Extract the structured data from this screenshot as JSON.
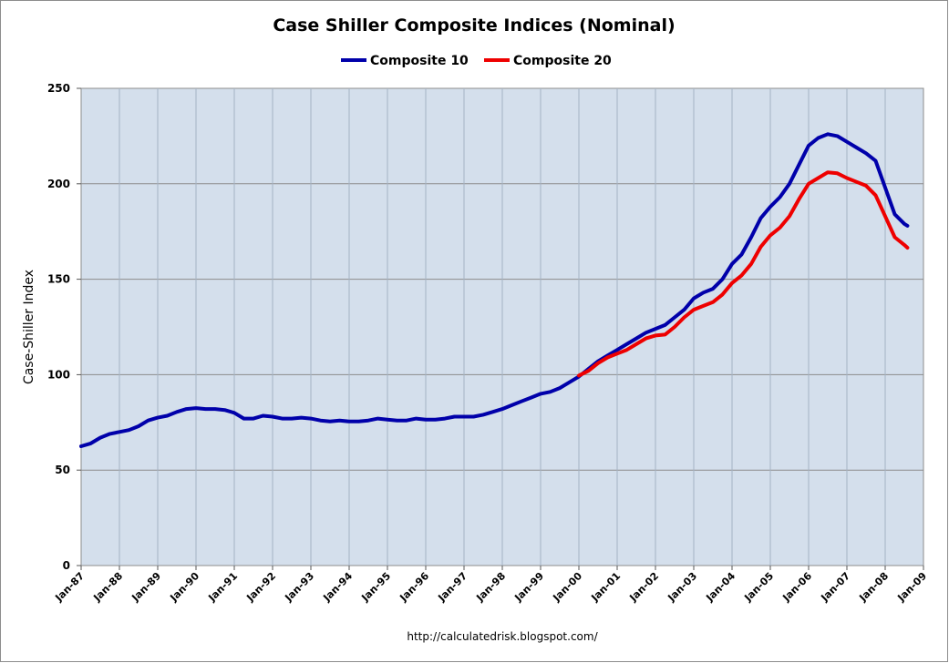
{
  "chart_data": {
    "type": "line",
    "title": "Case Shiller Composite Indices (Nominal)",
    "xlabel": "",
    "ylabel": "Case-Shiller Index",
    "ylim": [
      0,
      250
    ],
    "yticks": [
      0,
      50,
      100,
      150,
      200,
      250
    ],
    "xlim": [
      1987,
      2009
    ],
    "xticks": [
      "Jan-87",
      "Jan-88",
      "Jan-89",
      "Jan-90",
      "Jan-91",
      "Jan-92",
      "Jan-93",
      "Jan-94",
      "Jan-95",
      "Jan-96",
      "Jan-97",
      "Jan-98",
      "Jan-99",
      "Jan-00",
      "Jan-01",
      "Jan-02",
      "Jan-03",
      "Jan-04",
      "Jan-05",
      "Jan-06",
      "Jan-07",
      "Jan-08",
      "Jan-09"
    ],
    "grid": true,
    "legend": "top-center",
    "source_note": "http://calculatedrisk.blogspot.com/",
    "series": [
      {
        "name": "Composite 10",
        "color": "#0000aa",
        "points": [
          [
            1987.0,
            62.5
          ],
          [
            1987.25,
            64
          ],
          [
            1987.5,
            67
          ],
          [
            1987.75,
            69
          ],
          [
            1988.0,
            70
          ],
          [
            1988.25,
            71
          ],
          [
            1988.5,
            73
          ],
          [
            1988.75,
            76
          ],
          [
            1989.0,
            77.5
          ],
          [
            1989.25,
            78.5
          ],
          [
            1989.5,
            80.5
          ],
          [
            1989.75,
            82
          ],
          [
            1990.0,
            82.5
          ],
          [
            1990.25,
            82
          ],
          [
            1990.5,
            82
          ],
          [
            1990.75,
            81.5
          ],
          [
            1991.0,
            80
          ],
          [
            1991.25,
            77
          ],
          [
            1991.5,
            77
          ],
          [
            1991.75,
            78.5
          ],
          [
            1992.0,
            78
          ],
          [
            1992.25,
            77
          ],
          [
            1992.5,
            77
          ],
          [
            1992.75,
            77.5
          ],
          [
            1993.0,
            77
          ],
          [
            1993.25,
            76
          ],
          [
            1993.5,
            75.5
          ],
          [
            1993.75,
            76
          ],
          [
            1994.0,
            75.5
          ],
          [
            1994.25,
            75.5
          ],
          [
            1994.5,
            76
          ],
          [
            1994.75,
            77
          ],
          [
            1995.0,
            76.5
          ],
          [
            1995.25,
            76
          ],
          [
            1995.5,
            76
          ],
          [
            1995.75,
            77
          ],
          [
            1996.0,
            76.5
          ],
          [
            1996.25,
            76.5
          ],
          [
            1996.5,
            77
          ],
          [
            1996.75,
            78
          ],
          [
            1997.0,
            78
          ],
          [
            1997.25,
            78
          ],
          [
            1997.5,
            79
          ],
          [
            1997.75,
            80.5
          ],
          [
            1998.0,
            82
          ],
          [
            1998.25,
            84
          ],
          [
            1998.5,
            86
          ],
          [
            1998.75,
            88
          ],
          [
            1999.0,
            90
          ],
          [
            1999.25,
            91
          ],
          [
            1999.5,
            93
          ],
          [
            1999.75,
            96
          ],
          [
            2000.0,
            99
          ],
          [
            2000.25,
            103
          ],
          [
            2000.5,
            107
          ],
          [
            2000.75,
            110
          ],
          [
            2001.0,
            113
          ],
          [
            2001.25,
            116
          ],
          [
            2001.5,
            119
          ],
          [
            2001.75,
            122
          ],
          [
            2002.0,
            124
          ],
          [
            2002.25,
            126
          ],
          [
            2002.5,
            130
          ],
          [
            2002.75,
            134
          ],
          [
            2003.0,
            140
          ],
          [
            2003.25,
            143
          ],
          [
            2003.5,
            145
          ],
          [
            2003.75,
            150
          ],
          [
            2004.0,
            158
          ],
          [
            2004.25,
            163
          ],
          [
            2004.5,
            172
          ],
          [
            2004.75,
            182
          ],
          [
            2005.0,
            188
          ],
          [
            2005.25,
            193
          ],
          [
            2005.5,
            200
          ],
          [
            2005.75,
            210
          ],
          [
            2006.0,
            220
          ],
          [
            2006.25,
            224
          ],
          [
            2006.5,
            226
          ],
          [
            2006.75,
            225
          ],
          [
            2007.0,
            222
          ],
          [
            2007.25,
            219
          ],
          [
            2007.5,
            216
          ],
          [
            2007.75,
            212
          ],
          [
            2008.0,
            198
          ],
          [
            2008.25,
            184
          ],
          [
            2008.5,
            179
          ],
          [
            2008.58,
            178
          ]
        ]
      },
      {
        "name": "Composite 20",
        "color": "#ee0000",
        "points": [
          [
            2000.0,
            99.5
          ],
          [
            2000.25,
            102
          ],
          [
            2000.5,
            106
          ],
          [
            2000.75,
            109
          ],
          [
            2001.0,
            111
          ],
          [
            2001.25,
            113
          ],
          [
            2001.5,
            116
          ],
          [
            2001.75,
            119
          ],
          [
            2002.0,
            120.5
          ],
          [
            2002.25,
            121
          ],
          [
            2002.5,
            125
          ],
          [
            2002.75,
            130
          ],
          [
            2003.0,
            134
          ],
          [
            2003.25,
            136
          ],
          [
            2003.5,
            138
          ],
          [
            2003.75,
            142
          ],
          [
            2004.0,
            148
          ],
          [
            2004.25,
            152
          ],
          [
            2004.5,
            158
          ],
          [
            2004.75,
            167
          ],
          [
            2005.0,
            173
          ],
          [
            2005.25,
            177
          ],
          [
            2005.5,
            183
          ],
          [
            2005.75,
            192
          ],
          [
            2006.0,
            200
          ],
          [
            2006.25,
            203
          ],
          [
            2006.5,
            206
          ],
          [
            2006.75,
            205.5
          ],
          [
            2007.0,
            203
          ],
          [
            2007.25,
            201
          ],
          [
            2007.5,
            199
          ],
          [
            2007.75,
            194
          ],
          [
            2008.0,
            183
          ],
          [
            2008.25,
            172
          ],
          [
            2008.5,
            168
          ],
          [
            2008.58,
            166.5
          ]
        ]
      }
    ]
  }
}
